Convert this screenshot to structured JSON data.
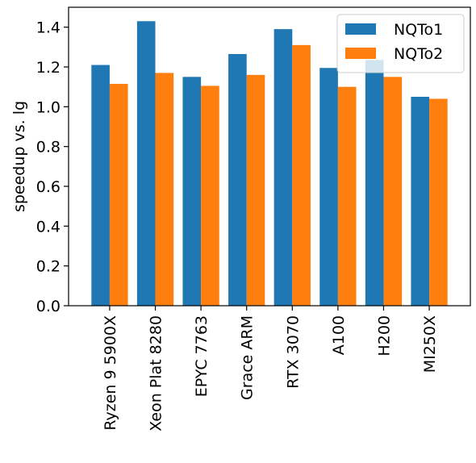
{
  "chart_data": {
    "type": "bar",
    "categories": [
      "Ryzen 9 5900X",
      "Xeon Plat 8280",
      "EPYC 7763",
      "Grace ARM",
      "RTX 3070",
      "A100",
      "H200",
      "MI250X"
    ],
    "series": [
      {
        "name": "NQTo1",
        "color": "#1f77b4",
        "values": [
          1.21,
          1.43,
          1.15,
          1.265,
          1.39,
          1.195,
          1.235,
          1.05
        ]
      },
      {
        "name": "NQTo2",
        "color": "#ff7f0e",
        "values": [
          1.115,
          1.17,
          1.105,
          1.16,
          1.31,
          1.1,
          1.15,
          1.04
        ]
      }
    ],
    "ylabel": "speedup vs. lg",
    "xlabel": "",
    "ylim": [
      0,
      1.5
    ],
    "yticks": [
      0.0,
      0.2,
      0.4,
      0.6,
      0.8,
      1.0,
      1.2,
      1.4
    ],
    "ytick_labels": [
      "0.0",
      "0.2",
      "0.4",
      "0.6",
      "0.8",
      "1.0",
      "1.2",
      "1.4"
    ],
    "legend_position": "top-right",
    "grid": false
  }
}
